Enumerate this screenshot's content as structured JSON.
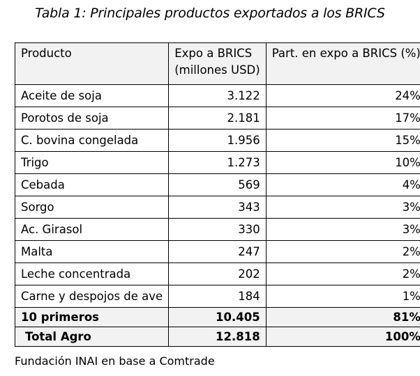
{
  "caption": "Tabla 1: Principales productos exportados a los BRICS",
  "table": {
    "headers": {
      "product": "Producto",
      "expo_line1": "Expo a BRICS",
      "expo_line2": "(millones USD)",
      "part": "Part. en expo a BRICS (%)"
    },
    "rows": [
      {
        "product": "Aceite de soja",
        "expo": "3.122",
        "part": "24%"
      },
      {
        "product": "Porotos de soja",
        "expo": "2.181",
        "part": "17%"
      },
      {
        "product": "C. bovina congelada",
        "expo": "1.956",
        "part": "15%"
      },
      {
        "product": "Trigo",
        "expo": "1.273",
        "part": "10%"
      },
      {
        "product": "Cebada",
        "expo": "569",
        "part": "4%"
      },
      {
        "product": "Sorgo",
        "expo": "343",
        "part": "3%"
      },
      {
        "product": "Ac. Girasol",
        "expo": "330",
        "part": "3%"
      },
      {
        "product": "Malta",
        "expo": "247",
        "part": "2%"
      },
      {
        "product": "Leche concentrada",
        "expo": "202",
        "part": "2%"
      },
      {
        "product": "Carne y despojos de ave",
        "expo": "184",
        "part": "1%"
      }
    ],
    "summary": [
      {
        "product": "10 primeros",
        "expo": "10.405",
        "part": "81%"
      },
      {
        "product": "Total Agro",
        "expo": "12.818",
        "part": "100%"
      }
    ]
  },
  "source": "Fundación INAI en base a Comtrade"
}
